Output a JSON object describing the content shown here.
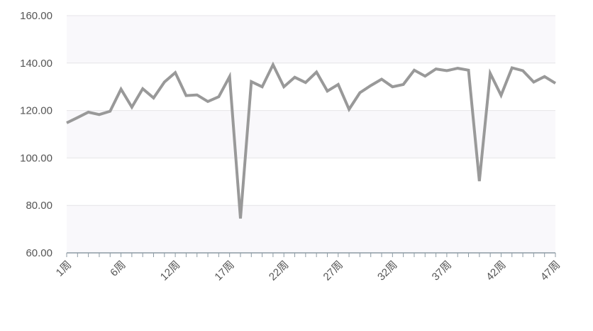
{
  "chart_data": {
    "type": "line",
    "title": "",
    "xlabel": "",
    "ylabel": "",
    "ylim": [
      60,
      160
    ],
    "yticks": [
      "60.00",
      "80.00",
      "100.00",
      "120.00",
      "140.00",
      "160.00"
    ],
    "grid": true,
    "banded_background": true,
    "line_color": "#999999",
    "categories": [
      "1周",
      "2周",
      "3周",
      "4周",
      "5周",
      "6周",
      "7周",
      "8周",
      "9周",
      "10周",
      "12周",
      "13周",
      "14周",
      "15周",
      "16周",
      "17周",
      "18周",
      "19周",
      "20周",
      "21周",
      "22周",
      "23周",
      "24周",
      "25周",
      "26周",
      "27周",
      "28周",
      "29周",
      "30周",
      "31周",
      "32周",
      "33周",
      "34周",
      "35周",
      "36周",
      "37周",
      "38周",
      "39周",
      "40周",
      "41周",
      "42周",
      "43周",
      "44周",
      "45周",
      "46周",
      "47周"
    ],
    "x_tick_labels_shown": [
      "1周",
      "6周",
      "12周",
      "17周",
      "22周",
      "27周",
      "32周",
      "37周",
      "42周",
      "47周"
    ],
    "values": [
      114.8,
      117.0,
      119.3,
      118.3,
      119.7,
      129.0,
      121.4,
      129.2,
      125.3,
      132.0,
      136.0,
      126.3,
      126.6,
      123.8,
      125.8,
      134.3,
      74.5,
      132.2,
      130.0,
      139.3,
      130.0,
      134.0,
      131.8,
      136.2,
      128.2,
      131.0,
      120.5,
      127.5,
      130.5,
      133.2,
      130.0,
      131.0,
      137.0,
      134.5,
      137.5,
      136.8,
      137.8,
      137.0,
      90.2,
      135.7,
      126.4,
      138.0,
      136.8,
      132.0,
      134.3,
      131.5
    ]
  }
}
